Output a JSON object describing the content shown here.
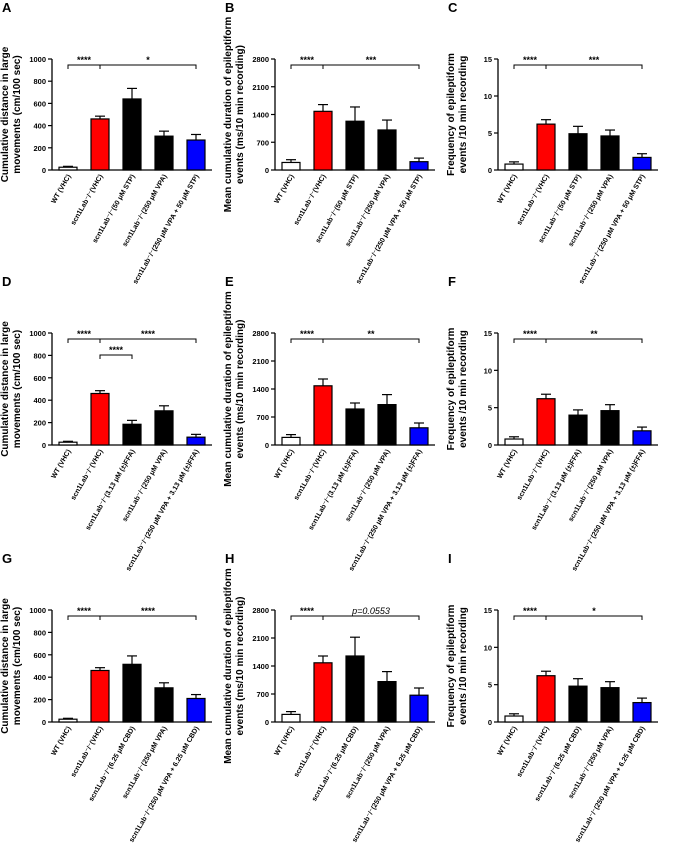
{
  "colors": {
    "wt": "#ffffff",
    "vhc": "#ff0000",
    "single": "#000000",
    "vpa": "#000000",
    "combo": "#0000ff"
  },
  "chart_data": [
    {
      "panel": "A",
      "type": "bar",
      "ylabel_lines": [
        "Cumulative distance in large",
        "movements (cm/100 sec)"
      ],
      "ylim": [
        0,
        1000
      ],
      "yticks": [
        0,
        200,
        400,
        600,
        800,
        1000
      ],
      "categories": [
        "WT (VHC)",
        "scn1Lab⁻/⁻(VHC)",
        "scn1Lab⁻/⁻(50 μM STP)",
        "scn1Lab⁻/⁻(250 μM VPA)",
        "scn1Lab⁻/⁻(250 μM VPA + 50 μM STP)"
      ],
      "values": [
        25,
        460,
        640,
        305,
        270
      ],
      "errors": [
        8,
        25,
        95,
        45,
        50
      ],
      "significance": [
        {
          "from": 0,
          "to": 1,
          "label": "****",
          "level": 0
        },
        {
          "from": 1,
          "to": 4,
          "label": "*",
          "level": 0
        }
      ]
    },
    {
      "panel": "B",
      "type": "bar",
      "ylabel_lines": [
        "Mean cumulative duration of epileptiform",
        "events (ms/10 min recording)"
      ],
      "ylim": [
        0,
        2800
      ],
      "yticks": [
        0,
        700,
        1400,
        2100,
        2800
      ],
      "categories": [
        "WT (VHC)",
        "scn1Lab⁻/⁻(VHC)",
        "scn1Lab⁻/⁻(50 μM STP)",
        "scn1Lab⁻/⁻(250 μM VPA)",
        "scn1Lab⁻/⁻(250 μM VPA + 50 μM STP)"
      ],
      "values": [
        190,
        1480,
        1230,
        1010,
        210
      ],
      "errors": [
        70,
        170,
        360,
        250,
        90
      ],
      "significance": [
        {
          "from": 0,
          "to": 1,
          "label": "****",
          "level": 0
        },
        {
          "from": 1,
          "to": 4,
          "label": "***",
          "level": 0
        }
      ]
    },
    {
      "panel": "C",
      "type": "bar",
      "ylabel_lines": [
        "Frequency of epileptiform",
        "events /10 min recording"
      ],
      "ylim": [
        0,
        15
      ],
      "yticks": [
        0,
        5,
        10,
        15
      ],
      "categories": [
        "WT (VHC)",
        "scn1Lab⁻/⁻(VHC)",
        "scn1Lab⁻/⁻(50 μM STP)",
        "scn1Lab⁻/⁻(250 μM VPA)",
        "scn1Lab⁻/⁻(250 μM VPA + 50 μM STP)"
      ],
      "values": [
        0.8,
        6.2,
        4.9,
        4.6,
        1.7
      ],
      "errors": [
        0.3,
        0.6,
        1.0,
        0.8,
        0.5
      ],
      "significance": [
        {
          "from": 0,
          "to": 1,
          "label": "****",
          "level": 0
        },
        {
          "from": 1,
          "to": 4,
          "label": "***",
          "level": 0
        }
      ]
    },
    {
      "panel": "D",
      "type": "bar",
      "ylabel_lines": [
        "Cumulative distance in large",
        "movements (cm/100 sec)"
      ],
      "ylim": [
        0,
        1000
      ],
      "yticks": [
        0,
        200,
        400,
        600,
        800,
        1000
      ],
      "categories": [
        "WT (VHC)",
        "scn1Lab⁻/⁻(VHC)",
        "scn1Lab⁻/⁻(3.13 μM (±)FFA)",
        "scn1Lab⁻/⁻(250 μM VPA)",
        "scn1Lab⁻/⁻(250 μM VPA + 3.13 μM (±)FFA)"
      ],
      "values": [
        25,
        460,
        185,
        305,
        70
      ],
      "errors": [
        8,
        25,
        35,
        45,
        25
      ],
      "significance": [
        {
          "from": 0,
          "to": 1,
          "label": "****",
          "level": 0
        },
        {
          "from": 1,
          "to": 4,
          "label": "****",
          "level": 0
        },
        {
          "from": 1,
          "to": 2,
          "label": "****",
          "level": 1
        }
      ]
    },
    {
      "panel": "E",
      "type": "bar",
      "ylabel_lines": [
        "Mean cumulative duration of epileptiform",
        "events (ms/10 min recording)"
      ],
      "ylim": [
        0,
        2800
      ],
      "yticks": [
        0,
        700,
        1400,
        2100,
        2800
      ],
      "categories": [
        "WT (VHC)",
        "scn1Lab⁻/⁻(VHC)",
        "scn1Lab⁻/⁻(3.13 μM (±)FFA)",
        "scn1Lab⁻/⁻(250 μM VPA)",
        "scn1Lab⁻/⁻(250 μM VPA + 3.13 μM (±)FFA)"
      ],
      "values": [
        190,
        1480,
        900,
        1010,
        430
      ],
      "errors": [
        70,
        170,
        150,
        250,
        120
      ],
      "significance": [
        {
          "from": 0,
          "to": 1,
          "label": "****",
          "level": 0
        },
        {
          "from": 1,
          "to": 4,
          "label": "**",
          "level": 0
        }
      ]
    },
    {
      "panel": "F",
      "type": "bar",
      "ylabel_lines": [
        "Frequency of epileptiform",
        "events /10 min recording"
      ],
      "ylim": [
        0,
        15
      ],
      "yticks": [
        0,
        5,
        10,
        15
      ],
      "categories": [
        "WT (VHC)",
        "scn1Lab⁻/⁻(VHC)",
        "scn1Lab⁻/⁻(3.13 μM (±)FFA)",
        "scn1Lab⁻/⁻(250 μM VPA)",
        "scn1Lab⁻/⁻(250 μM VPA + 3.13 μM (±)FFA)"
      ],
      "values": [
        0.8,
        6.2,
        4.0,
        4.6,
        1.9
      ],
      "errors": [
        0.3,
        0.6,
        0.7,
        0.8,
        0.5
      ],
      "significance": [
        {
          "from": 0,
          "to": 1,
          "label": "****",
          "level": 0
        },
        {
          "from": 1,
          "to": 4,
          "label": "**",
          "level": 0
        }
      ]
    },
    {
      "panel": "G",
      "type": "bar",
      "ylabel_lines": [
        "Cumulative distance in large",
        "movements (cm/100 sec)"
      ],
      "ylim": [
        0,
        1000
      ],
      "yticks": [
        0,
        200,
        400,
        600,
        800,
        1000
      ],
      "categories": [
        "WT (VHC)",
        "scn1Lab⁻/⁻(VHC)",
        "scn1Lab⁻/⁻(6.25 μM CBD)",
        "scn1Lab⁻/⁻(250 μM VPA)",
        "scn1Lab⁻/⁻(250 μM VPA + 6.25 μM CBD)"
      ],
      "values": [
        25,
        460,
        515,
        305,
        210
      ],
      "errors": [
        8,
        25,
        75,
        45,
        35
      ],
      "significance": [
        {
          "from": 0,
          "to": 1,
          "label": "****",
          "level": 0
        },
        {
          "from": 1,
          "to": 4,
          "label": "****",
          "level": 0
        }
      ]
    },
    {
      "panel": "H",
      "type": "bar",
      "ylabel_lines": [
        "Mean cumulative duration of epileptiform",
        "events (ms/10 min recording)"
      ],
      "ylim": [
        0,
        2800
      ],
      "yticks": [
        0,
        700,
        1400,
        2100,
        2800
      ],
      "categories": [
        "WT (VHC)",
        "scn1Lab⁻/⁻(VHC)",
        "scn1Lab⁻/⁻(6.25 μM CBD)",
        "scn1Lab⁻/⁻(250 μM VPA)",
        "scn1Lab⁻/⁻(250 μM VPA + 6.25 μM CBD)"
      ],
      "values": [
        190,
        1480,
        1650,
        1010,
        670
      ],
      "errors": [
        70,
        170,
        470,
        250,
        180
      ],
      "significance": [
        {
          "from": 0,
          "to": 1,
          "label": "****",
          "level": 0
        },
        {
          "from": 1,
          "to": 4,
          "label": "p=0.0553",
          "level": 0,
          "italic": true
        }
      ]
    },
    {
      "panel": "I",
      "type": "bar",
      "ylabel_lines": [
        "Frequency of epileptiform",
        "events /10 min recording"
      ],
      "ylim": [
        0,
        15
      ],
      "yticks": [
        0,
        5,
        10,
        15
      ],
      "categories": [
        "WT (VHC)",
        "scn1Lab⁻/⁻(VHC)",
        "scn1Lab⁻/⁻(6.25 μM CBD)",
        "scn1Lab⁻/⁻(250 μM VPA)",
        "scn1Lab⁻/⁻(250 μM VPA + 6.25 μM CBD)"
      ],
      "values": [
        0.8,
        6.2,
        4.8,
        4.6,
        2.6
      ],
      "errors": [
        0.3,
        0.6,
        1.0,
        0.8,
        0.6
      ],
      "significance": [
        {
          "from": 0,
          "to": 1,
          "label": "****",
          "level": 0
        },
        {
          "from": 1,
          "to": 4,
          "label": "*",
          "level": 0
        }
      ]
    }
  ]
}
